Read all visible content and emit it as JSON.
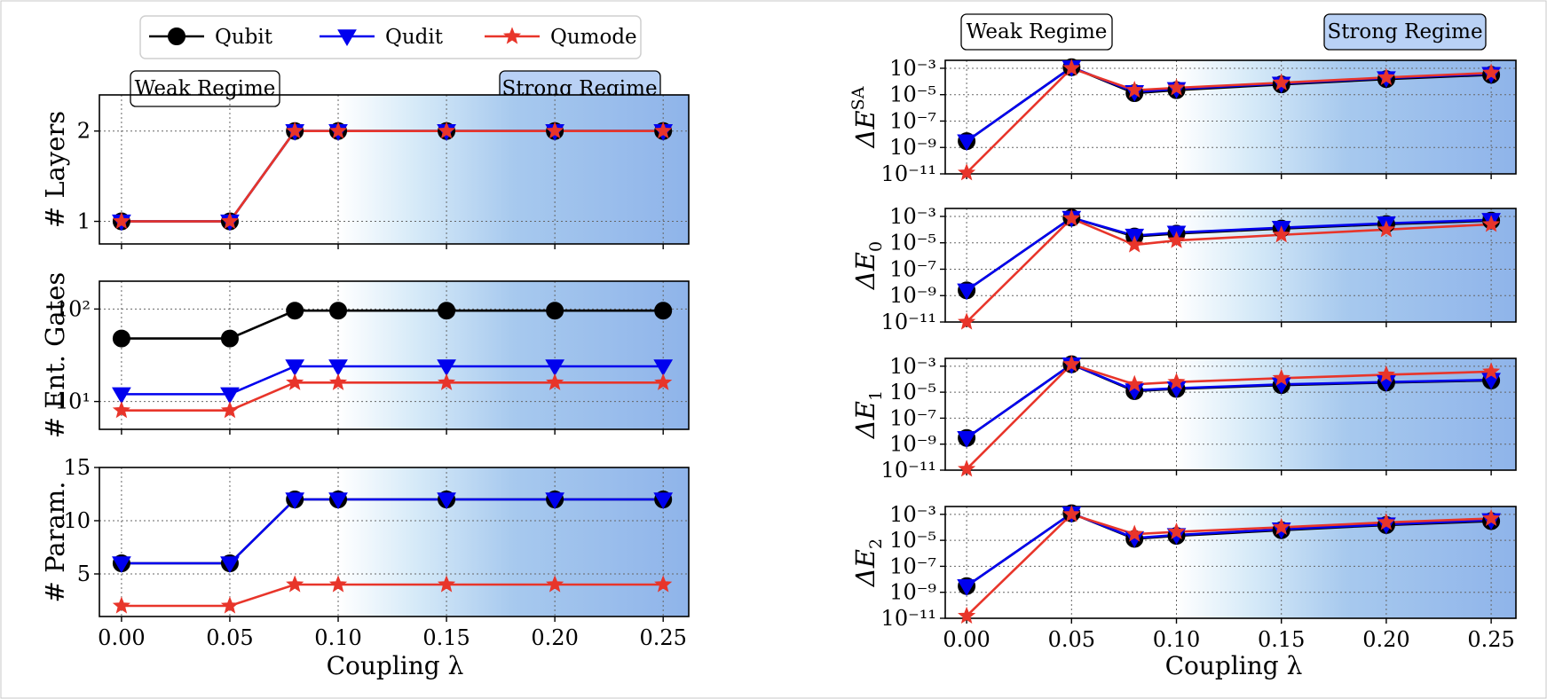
{
  "chart_data": {
    "type": "line",
    "x": [
      0.0,
      0.05,
      0.08,
      0.1,
      0.15,
      0.2,
      0.25
    ],
    "x_ticks": [
      "0.00",
      "0.05",
      "0.10",
      "0.15",
      "0.20",
      "0.25"
    ],
    "xlabel": "Coupling λ",
    "legend": [
      "Qubit",
      "Qudit",
      "Qumode"
    ],
    "legend_placement": "top-left",
    "colors": {
      "Qubit": "#000000",
      "Qudit": "#0000ee",
      "Qumode": "#e8352a",
      "strong_regime": "#8fb4ea",
      "regime_box_strong": "#b9d1f5"
    },
    "regimes": {
      "weak": "Weak Regime",
      "strong": "Strong Regime"
    },
    "grid": true,
    "panels": [
      {
        "id": "layers",
        "ylabel": "# Layers",
        "yscale": "linear",
        "ylim": [
          0.75,
          2.4
        ],
        "yticks": [
          1,
          2
        ],
        "ytick_labels": [
          "1",
          "2"
        ],
        "series": [
          {
            "name": "Qubit",
            "values": [
              1,
              1,
              2,
              2,
              2,
              2,
              2
            ]
          },
          {
            "name": "Qudit",
            "values": [
              1,
              1,
              2,
              2,
              2,
              2,
              2
            ]
          },
          {
            "name": "Qumode",
            "values": [
              1,
              1,
              2,
              2,
              2,
              2,
              2
            ]
          }
        ]
      },
      {
        "id": "ent_gates",
        "ylabel": "# Ent. Gates",
        "yscale": "log",
        "ylim": [
          5,
          200
        ],
        "yticks": [
          10,
          100
        ],
        "ytick_labels": [
          "10¹",
          "10²"
        ],
        "series": [
          {
            "name": "Qubit",
            "values": [
              48,
              48,
              96,
              96,
              96,
              96,
              96
            ]
          },
          {
            "name": "Qudit",
            "values": [
              12,
              12,
              24,
              24,
              24,
              24,
              24
            ]
          },
          {
            "name": "Qumode",
            "values": [
              8,
              8,
              16,
              16,
              16,
              16,
              16
            ]
          }
        ]
      },
      {
        "id": "params",
        "ylabel": "# Param.",
        "yscale": "linear",
        "ylim": [
          1,
          15
        ],
        "yticks": [
          5,
          10,
          15
        ],
        "ytick_labels": [
          "5",
          "10",
          "15"
        ],
        "series": [
          {
            "name": "Qubit",
            "values": [
              6,
              6,
              12,
              12,
              12,
              12,
              12
            ]
          },
          {
            "name": "Qudit",
            "values": [
              6,
              6,
              12,
              12,
              12,
              12,
              12
            ]
          },
          {
            "name": "Qumode",
            "values": [
              2,
              2,
              4,
              4,
              4,
              4,
              4
            ]
          }
        ]
      },
      {
        "id": "dE_SA",
        "ylabel": "ΔE^SA",
        "ylabel_main": "ΔE",
        "ylabel_sup": "SA",
        "ylabel_sub": "",
        "yscale": "log",
        "ylim": [
          1e-11,
          0.004
        ],
        "yticks": [
          1e-11,
          1e-09,
          1e-07,
          1e-05,
          0.001
        ],
        "ytick_labels": [
          "10⁻¹¹",
          "10⁻⁹",
          "10⁻⁷",
          "10⁻⁵",
          "10⁻³"
        ],
        "series": [
          {
            "name": "Qubit",
            "values": [
              3e-09,
              0.0012,
              1.3e-05,
              2.2e-05,
              6e-05,
              0.00015,
              0.00032
            ]
          },
          {
            "name": "Qudit",
            "values": [
              3e-09,
              0.0012,
              1.6e-05,
              2.7e-05,
              7e-05,
              0.00018,
              0.00038
            ]
          },
          {
            "name": "Qumode",
            "values": [
              1.2e-11,
              0.001,
              2.2e-05,
              3.3e-05,
              8e-05,
              0.0002,
              0.00045
            ]
          }
        ]
      },
      {
        "id": "dE0",
        "ylabel": "ΔE₀",
        "ylabel_main": "ΔE",
        "ylabel_sup": "",
        "ylabel_sub": "0",
        "yscale": "log",
        "ylim": [
          1e-11,
          0.004
        ],
        "yticks": [
          1e-11,
          1e-09,
          1e-07,
          1e-05,
          0.001
        ],
        "ytick_labels": [
          "10⁻¹¹",
          "10⁻⁹",
          "10⁻⁷",
          "10⁻⁵",
          "10⁻³"
        ],
        "series": [
          {
            "name": "Qubit",
            "values": [
              2.5e-09,
              0.0008,
              3e-05,
              5e-05,
              0.00012,
              0.00026,
              0.00048
            ]
          },
          {
            "name": "Qudit",
            "values": [
              2.5e-09,
              0.0008,
              3.5e-05,
              6e-05,
              0.00014,
              0.0003,
              0.00055
            ]
          },
          {
            "name": "Qumode",
            "values": [
              1e-11,
              0.0007,
              7e-06,
              1.5e-05,
              4e-05,
              0.0001,
              0.00025
            ]
          }
        ]
      },
      {
        "id": "dE1",
        "ylabel": "ΔE₁",
        "ylabel_main": "ΔE",
        "ylabel_sup": "",
        "ylabel_sub": "1",
        "yscale": "log",
        "ylim": [
          1e-11,
          0.004
        ],
        "yticks": [
          1e-11,
          1e-09,
          1e-07,
          1e-05,
          0.001
        ],
        "ytick_labels": [
          "10⁻¹¹",
          "10⁻⁹",
          "10⁻⁷",
          "10⁻⁵",
          "10⁻³"
        ],
        "series": [
          {
            "name": "Qubit",
            "values": [
              3e-09,
              0.0014,
              1.2e-05,
              1.8e-05,
              3.5e-05,
              5.5e-05,
              8e-05
            ]
          },
          {
            "name": "Qudit",
            "values": [
              3e-09,
              0.0014,
              1.4e-05,
              2e-05,
              4e-05,
              6e-05,
              9e-05
            ]
          },
          {
            "name": "Qumode",
            "values": [
              1.2e-11,
              0.0014,
              4e-05,
              6e-05,
              0.00012,
              0.00022,
              0.00038
            ]
          }
        ]
      },
      {
        "id": "dE2",
        "ylabel": "ΔE₂",
        "ylabel_main": "ΔE",
        "ylabel_sup": "",
        "ylabel_sub": "2",
        "yscale": "log",
        "ylim": [
          1e-11,
          0.004
        ],
        "yticks": [
          1e-11,
          1e-09,
          1e-07,
          1e-05,
          0.001
        ],
        "ytick_labels": [
          "10⁻¹¹",
          "10⁻⁹",
          "10⁻⁷",
          "10⁻⁵",
          "10⁻³"
        ],
        "series": [
          {
            "name": "Qubit",
            "values": [
              3e-09,
              0.0012,
              1.3e-05,
              2.2e-05,
              6e-05,
              0.00015,
              0.0003
            ]
          },
          {
            "name": "Qudit",
            "values": [
              3e-09,
              0.0012,
              1.5e-05,
              2.6e-05,
              7e-05,
              0.00017,
              0.00036
            ]
          },
          {
            "name": "Qumode",
            "values": [
              1.5e-11,
              0.001,
              3e-05,
              4.5e-05,
              0.0001,
              0.00024,
              0.00048
            ]
          }
        ]
      }
    ]
  }
}
